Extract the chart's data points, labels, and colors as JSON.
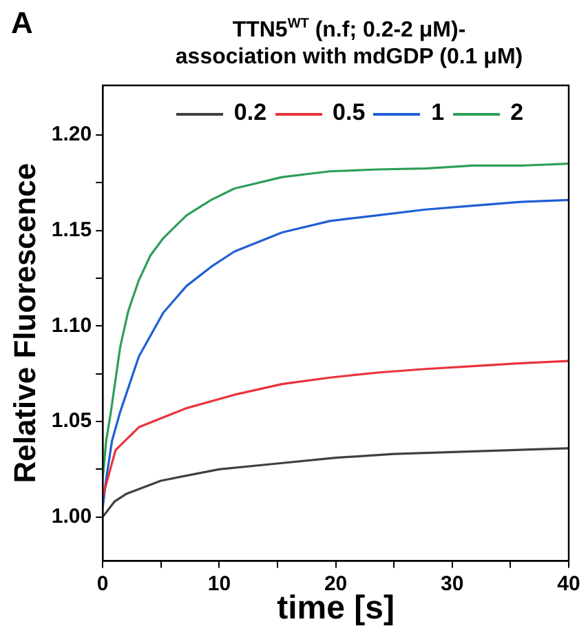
{
  "chart_data": {
    "type": "line",
    "title": "TTN5$^{WT}$ (n.f; 0.2-2 μM)-\nassociation  with mdGDP (0.1 μM)",
    "annotations": [
      "A"
    ],
    "xlabel": "time [s]",
    "ylabel": "Relative Fluorescence",
    "xlim": [
      0,
      40
    ],
    "xticks": [
      0,
      {
        "value": 5,
        "label": null
      },
      10,
      {
        "value": 15,
        "label": null
      },
      20,
      {
        "value": 25,
        "label": null
      },
      30,
      {
        "value": 35,
        "label": null
      },
      40
    ],
    "ylim": [
      0.977,
      1.226
    ],
    "yticks": [
      {
        "value": 1,
        "label": "1.00"
      },
      {
        "value": 1.025,
        "label": null
      },
      {
        "value": 1.05,
        "label": "1.05"
      },
      {
        "value": 1.075,
        "label": null
      },
      {
        "value": 1.1,
        "label": "1.10"
      },
      {
        "value": 1.125,
        "label": null
      },
      {
        "value": 1.15,
        "label": "1.15"
      },
      {
        "value": 1.175,
        "label": null
      },
      {
        "value": 1.2,
        "label": "1.20"
      }
    ],
    "grid": false,
    "legend": "top",
    "marker": "none",
    "line_style": "solid",
    "series": [
      {
        "name": "0.2",
        "color": "#404040",
        "x": [
          0,
          1,
          2,
          5,
          10,
          15,
          20,
          25,
          30,
          35,
          40
        ],
        "values": [
          1.0,
          1.008,
          1.012,
          1.019,
          1.025,
          1.028,
          1.031,
          1.033,
          1.034,
          1.035,
          1.036
        ]
      },
      {
        "name": "0.5",
        "color": "#e8333a",
        "x": [
          0,
          0.2,
          1.1,
          3.1,
          7.2,
          11.3,
          15.4,
          19.5,
          23.6,
          27.7,
          31.8,
          35.9,
          40
        ],
        "values": [
          1.01,
          1.015,
          1.035,
          1.047,
          1.057,
          1.064,
          1.0696,
          1.073,
          1.0756,
          1.0775,
          1.079,
          1.0805,
          1.0817
        ]
      },
      {
        "name": "1",
        "color": "#1f5fd6",
        "x": [
          0,
          0.3,
          0.8,
          1.5,
          3.1,
          5.2,
          7.2,
          9.3,
          11.3,
          15.4,
          19.5,
          23.6,
          27.7,
          31.8,
          35.9,
          40
        ],
        "values": [
          1.005,
          1.02,
          1.04,
          1.055,
          1.084,
          1.107,
          1.121,
          1.131,
          1.139,
          1.149,
          1.155,
          1.158,
          1.161,
          1.163,
          1.165,
          1.166
        ]
      },
      {
        "name": "2",
        "color": "#2e9e5a",
        "x": [
          0,
          0.3,
          0.7,
          1.5,
          2.2,
          3.1,
          4.1,
          5.2,
          7.2,
          9.3,
          11.3,
          15.4,
          19.5,
          23.6,
          27.7,
          31.8,
          35.9,
          40
        ],
        "values": [
          1.02,
          1.04,
          1.055,
          1.089,
          1.108,
          1.124,
          1.137,
          1.146,
          1.158,
          1.166,
          1.172,
          1.178,
          1.181,
          1.182,
          1.1825,
          1.184,
          1.184,
          1.185
        ]
      }
    ]
  }
}
